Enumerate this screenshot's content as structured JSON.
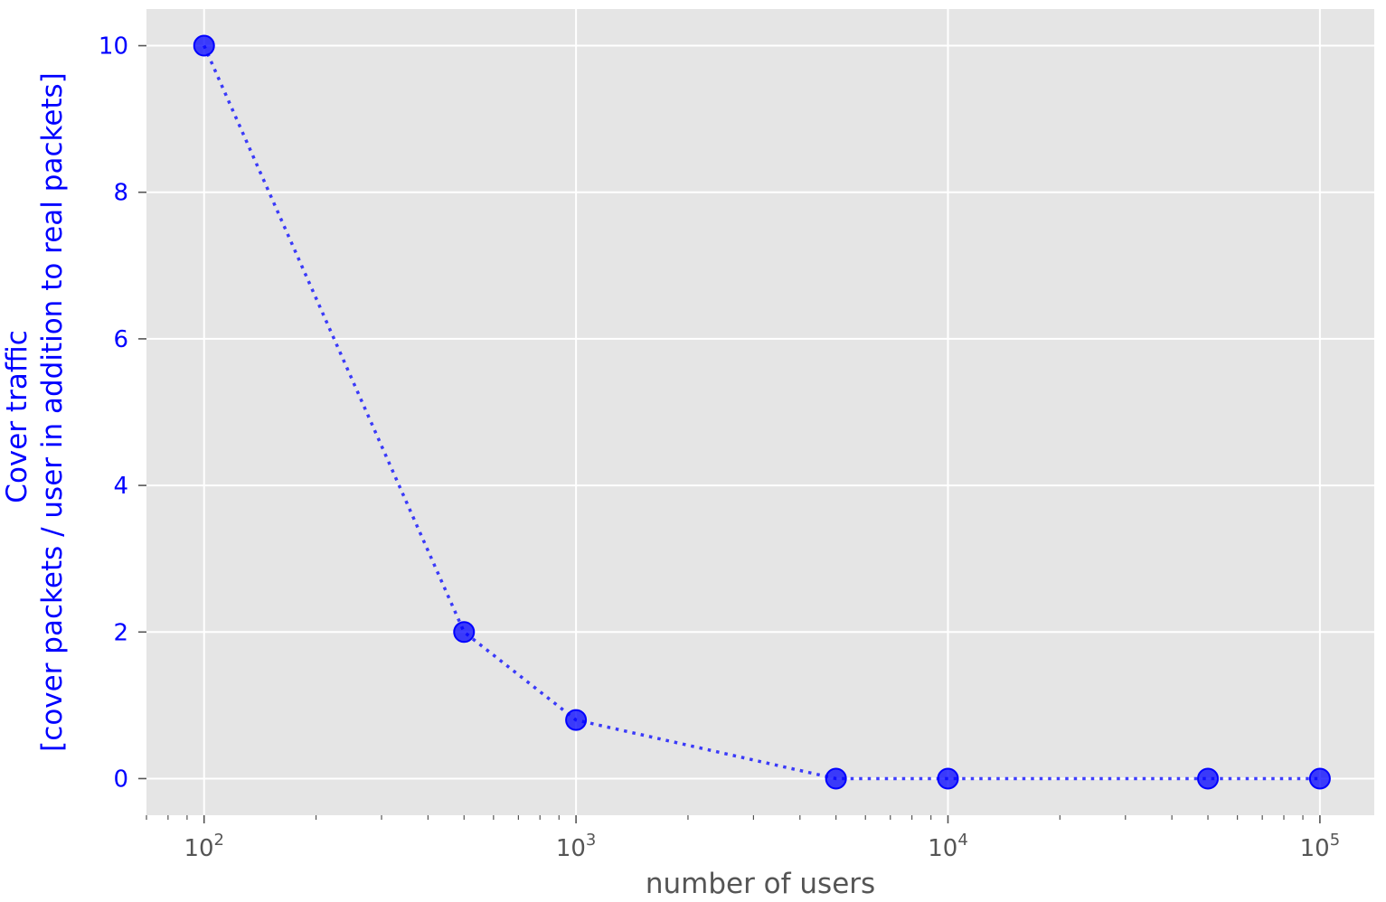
{
  "chart_data": {
    "type": "line",
    "title": "",
    "xlabel": "number of users",
    "ylabel_line1": "Cover traffic",
    "ylabel_line2": "[cover packets / user in addition to real packets]",
    "x_scale": "log",
    "xlim": [
      70,
      140000
    ],
    "ylim": [
      -0.5,
      10.5
    ],
    "x_ticks": [
      100,
      1000,
      10000,
      100000
    ],
    "x_tick_labels": [
      {
        "base": "10",
        "exp": "2"
      },
      {
        "base": "10",
        "exp": "3"
      },
      {
        "base": "10",
        "exp": "4"
      },
      {
        "base": "10",
        "exp": "5"
      }
    ],
    "y_ticks": [
      0,
      2,
      4,
      6,
      8,
      10
    ],
    "y_tick_labels": [
      "0",
      "2",
      "4",
      "6",
      "8",
      "10"
    ],
    "grid": true,
    "series": [
      {
        "x": [
          100,
          500,
          1000,
          5000,
          10000,
          50000,
          100000
        ],
        "y": [
          10,
          2,
          0.8,
          0,
          0,
          0,
          0
        ],
        "color": "#0000ff",
        "line_style": "dotted",
        "marker": "circle"
      }
    ],
    "colors": {
      "plot_background": "#e5e5e5",
      "grid": "#ffffff",
      "ylabel": "#0000ff",
      "ytick_label": "#0000ff",
      "xlabel": "#555555",
      "xtick_label": "#555555"
    }
  }
}
